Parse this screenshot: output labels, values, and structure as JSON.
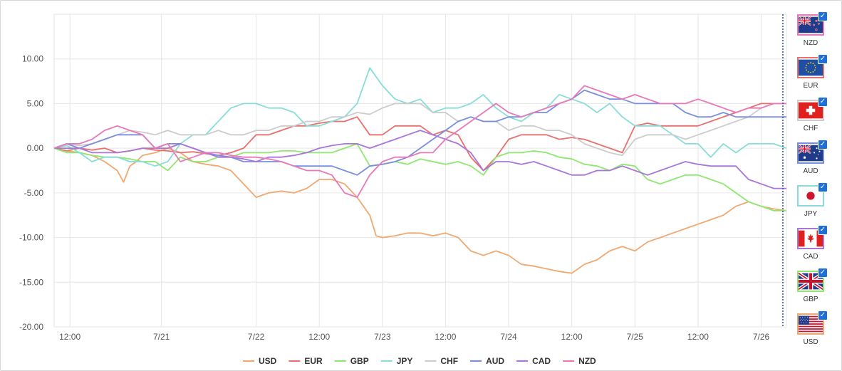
{
  "chart_data": {
    "type": "line",
    "ylim": [
      -20,
      15
    ],
    "yticks": [
      10,
      5,
      0,
      -5,
      -10,
      -15,
      -20
    ],
    "ytick_labels": [
      "10.00",
      "5.00",
      "0.00",
      "-5.00",
      "-10.00",
      "-15.00",
      "-20.00"
    ],
    "xlim": [
      0,
      116
    ],
    "xticks": [
      {
        "x": 2.5,
        "label": "12:00"
      },
      {
        "x": 17,
        "label": "7/21"
      },
      {
        "x": 32,
        "label": "7/22"
      },
      {
        "x": 42,
        "label": "12:00"
      },
      {
        "x": 52,
        "label": "7/23"
      },
      {
        "x": 62,
        "label": "12:00"
      },
      {
        "x": 72,
        "label": "7/24"
      },
      {
        "x": 82,
        "label": "12:00"
      },
      {
        "x": 92,
        "label": "7/25"
      },
      {
        "x": 102,
        "label": "12:00"
      },
      {
        "x": 112,
        "label": "7/26"
      }
    ],
    "grid": true,
    "legend": "bottom",
    "current_marker_x": 116,
    "series": [
      {
        "name": "USD",
        "color": "#f0a870",
        "x": [
          0,
          2,
          4,
          6,
          8,
          10,
          11,
          12,
          13,
          14,
          16,
          18,
          20,
          22,
          24,
          26,
          28,
          30,
          32,
          34,
          36,
          38,
          40,
          42,
          44,
          46,
          48,
          50,
          51,
          52,
          54,
          56,
          58,
          60,
          62,
          64,
          66,
          68,
          70,
          72,
          74,
          76,
          78,
          80,
          82,
          84,
          86,
          88,
          90,
          92,
          94,
          96,
          98,
          100,
          102,
          104,
          106,
          108,
          110,
          112,
          114,
          116
        ],
        "y": [
          0,
          -0.3,
          -0.5,
          -0.8,
          -1.5,
          -2.5,
          -3.8,
          -2,
          -1.5,
          -0.8,
          -0.5,
          0,
          -0.5,
          -1.5,
          -1.8,
          -2,
          -2.5,
          -4,
          -5.5,
          -5,
          -4.8,
          -5,
          -4.5,
          -3.5,
          -3.5,
          -4,
          -5.5,
          -7.5,
          -9.8,
          -10,
          -9.8,
          -9.5,
          -9.5,
          -9.8,
          -9.5,
          -10,
          -11.5,
          -12,
          -11.5,
          -12,
          -13,
          -13.2,
          -13.5,
          -13.8,
          -14,
          -13,
          -12.5,
          -11.5,
          -11,
          -11.5,
          -10.5,
          -10,
          -9.5,
          -9,
          -8.5,
          -8,
          -7.5,
          -6.5,
          -6,
          -6.5,
          -6.8,
          -7
        ]
      },
      {
        "name": "EUR",
        "color": "#e8706c",
        "x": [
          0,
          2,
          4,
          6,
          8,
          10,
          12,
          14,
          16,
          18,
          20,
          22,
          24,
          26,
          28,
          30,
          32,
          34,
          36,
          38,
          40,
          42,
          44,
          46,
          48,
          50,
          52,
          54,
          56,
          58,
          60,
          62,
          64,
          66,
          68,
          70,
          72,
          74,
          76,
          78,
          80,
          82,
          84,
          86,
          88,
          90,
          92,
          94,
          96,
          98,
          100,
          102,
          104,
          106,
          108,
          110,
          112,
          114,
          116
        ],
        "y": [
          0,
          -0.3,
          0,
          -0.2,
          0,
          -0.5,
          -0.3,
          0,
          -0.2,
          -0.3,
          -0.5,
          -0.4,
          -0.6,
          -0.8,
          -0.5,
          0,
          1.5,
          1.5,
          2,
          2.5,
          2.5,
          2.8,
          3,
          3,
          3.5,
          1.5,
          1.5,
          2.5,
          2.5,
          2.5,
          1.5,
          2,
          1.5,
          -1,
          -2.5,
          -1,
          1,
          1.5,
          1.5,
          1.5,
          1,
          1.2,
          1,
          0.5,
          0,
          -0.5,
          2.5,
          2.8,
          2.5,
          2.5,
          2.5,
          2.5,
          3,
          3.5,
          4,
          4.5,
          5,
          5,
          5
        ]
      },
      {
        "name": "GBP",
        "color": "#8ee870",
        "x": [
          0,
          2,
          4,
          6,
          8,
          10,
          12,
          14,
          16,
          18,
          20,
          22,
          24,
          26,
          28,
          30,
          32,
          34,
          36,
          38,
          40,
          42,
          44,
          46,
          48,
          50,
          52,
          54,
          56,
          58,
          60,
          62,
          64,
          66,
          68,
          70,
          72,
          74,
          76,
          78,
          80,
          82,
          84,
          86,
          88,
          90,
          92,
          94,
          96,
          98,
          100,
          102,
          104,
          106,
          108,
          110,
          112,
          114,
          116
        ],
        "y": [
          0,
          -0.5,
          -0.5,
          -0.8,
          -1,
          -1,
          -1.2,
          -1.5,
          -1.5,
          -2.5,
          -1,
          -1.5,
          -1.5,
          -1,
          -1,
          -0.5,
          -0.5,
          -0.5,
          -0.3,
          -0.3,
          -0.5,
          -0.5,
          -0.5,
          0,
          0.5,
          -2,
          -1.8,
          -1.5,
          -1.8,
          -1.2,
          -1.5,
          -1.8,
          -1.5,
          -2,
          -3,
          -1,
          -0.5,
          -0.5,
          -0.3,
          -0.5,
          -1,
          -1.2,
          -1.8,
          -2,
          -2.5,
          -1.8,
          -2,
          -3.5,
          -4,
          -3.5,
          -3,
          -3,
          -3.5,
          -4,
          -5,
          -6,
          -6.5,
          -7,
          -7
        ]
      },
      {
        "name": "JPY",
        "color": "#88ddd8",
        "x": [
          0,
          2,
          4,
          6,
          8,
          10,
          12,
          14,
          16,
          18,
          20,
          22,
          24,
          26,
          28,
          30,
          32,
          34,
          36,
          38,
          40,
          42,
          44,
          46,
          48,
          49,
          50,
          51,
          52,
          54,
          56,
          58,
          60,
          62,
          64,
          66,
          68,
          70,
          72,
          74,
          76,
          78,
          80,
          82,
          84,
          86,
          88,
          90,
          92,
          94,
          96,
          98,
          100,
          102,
          104,
          106,
          108,
          110,
          112,
          114,
          116
        ],
        "y": [
          0,
          0.3,
          -0.5,
          -1.5,
          -1,
          -1,
          -1.5,
          -1.5,
          -2,
          -1.5,
          0.5,
          1.5,
          1.5,
          3,
          4.5,
          5,
          5,
          4.5,
          4.5,
          4,
          2.5,
          2.5,
          3,
          3.5,
          5,
          7,
          9,
          8,
          7,
          5.5,
          5,
          5.5,
          4,
          4.5,
          4.5,
          5,
          6,
          4.5,
          3.5,
          3,
          4,
          4.5,
          6,
          5.5,
          5,
          4,
          5,
          3.5,
          2.5,
          2.5,
          2.5,
          1.5,
          0.5,
          0.5,
          -1,
          0.5,
          -0.5,
          0.5,
          0.5,
          0.5,
          0
        ]
      },
      {
        "name": "CHF",
        "color": "#cccccc",
        "x": [
          0,
          2,
          4,
          6,
          8,
          10,
          12,
          14,
          16,
          18,
          20,
          22,
          24,
          26,
          28,
          30,
          32,
          34,
          36,
          38,
          40,
          42,
          44,
          46,
          48,
          50,
          52,
          54,
          56,
          58,
          60,
          62,
          64,
          66,
          68,
          70,
          72,
          74,
          76,
          78,
          80,
          82,
          84,
          86,
          88,
          90,
          92,
          94,
          96,
          98,
          100,
          102,
          104,
          106,
          108,
          110,
          112,
          114,
          116
        ],
        "y": [
          0,
          0.5,
          0.3,
          0.5,
          1,
          1.5,
          2,
          1.8,
          1.5,
          2,
          1.5,
          1.5,
          1.5,
          2,
          1.5,
          1.5,
          2,
          2,
          2.5,
          2.5,
          3,
          3,
          3.5,
          3.5,
          4,
          3.8,
          4.5,
          5,
          5,
          5,
          4,
          4,
          3,
          3.5,
          3,
          3,
          2,
          2.5,
          2.5,
          2,
          2,
          1.5,
          0.5,
          0,
          -0.5,
          -0.8,
          1,
          1.5,
          1.5,
          1.5,
          1,
          1.5,
          2,
          2.5,
          3,
          3.5,
          4.5,
          5,
          5
        ]
      },
      {
        "name": "AUD",
        "color": "#7a8ee0",
        "x": [
          0,
          2,
          4,
          6,
          8,
          10,
          12,
          14,
          16,
          18,
          20,
          22,
          24,
          26,
          28,
          30,
          32,
          34,
          36,
          38,
          40,
          42,
          44,
          46,
          48,
          50,
          52,
          54,
          56,
          58,
          60,
          62,
          64,
          66,
          68,
          70,
          72,
          74,
          76,
          78,
          80,
          82,
          84,
          86,
          88,
          90,
          92,
          94,
          96,
          98,
          100,
          102,
          104,
          106,
          108,
          110,
          112,
          114,
          116
        ],
        "y": [
          0,
          0.5,
          0,
          0.5,
          1,
          1.5,
          1.5,
          1.5,
          0,
          0.5,
          0.5,
          0,
          -0.5,
          -0.8,
          -1,
          -1.5,
          -1.5,
          -1.5,
          -1.5,
          -2,
          -2,
          -2,
          -2,
          -2.5,
          -3,
          -2,
          -1.8,
          -1.5,
          -1,
          0,
          1,
          2,
          3,
          3.5,
          3,
          3,
          3.5,
          3.5,
          4,
          4,
          5,
          5.5,
          6.5,
          6,
          5.5,
          5.5,
          5,
          5,
          5,
          5,
          4,
          3.5,
          3.5,
          4,
          3.5,
          3.5,
          3.5,
          3.5,
          3.5
        ]
      },
      {
        "name": "CAD",
        "color": "#a876d8",
        "x": [
          0,
          2,
          4,
          6,
          8,
          10,
          12,
          14,
          16,
          18,
          20,
          22,
          24,
          26,
          28,
          30,
          32,
          34,
          36,
          38,
          40,
          42,
          44,
          46,
          48,
          50,
          52,
          54,
          56,
          58,
          60,
          62,
          64,
          66,
          68,
          70,
          72,
          74,
          76,
          78,
          80,
          82,
          84,
          86,
          88,
          90,
          92,
          94,
          96,
          98,
          100,
          102,
          104,
          106,
          108,
          110,
          112,
          114,
          116
        ],
        "y": [
          0,
          0,
          0,
          -0.5,
          -0.5,
          -0.5,
          -0.3,
          0,
          0,
          0,
          0.5,
          0,
          -0.5,
          -1,
          -1,
          -1.2,
          -1.5,
          -1,
          -1,
          -0.8,
          -0.5,
          0,
          0.3,
          0.5,
          0.5,
          0,
          0.5,
          1,
          1.5,
          2,
          1.5,
          1,
          0.5,
          -0.5,
          -2.5,
          -1.5,
          -1.5,
          -1.8,
          -1.5,
          -2,
          -2.5,
          -3,
          -3,
          -2.5,
          -2.5,
          -2,
          -2.5,
          -3,
          -2.5,
          -2,
          -1.5,
          -1.8,
          -2,
          -2,
          -2,
          -3.5,
          -4,
          -4.5,
          -4.5
        ]
      },
      {
        "name": "NZD",
        "color": "#e878b8",
        "x": [
          0,
          2,
          4,
          6,
          8,
          10,
          12,
          14,
          16,
          18,
          20,
          22,
          24,
          26,
          28,
          30,
          32,
          34,
          36,
          38,
          40,
          42,
          44,
          46,
          48,
          50,
          52,
          54,
          56,
          58,
          60,
          62,
          64,
          66,
          68,
          70,
          72,
          74,
          76,
          78,
          80,
          82,
          84,
          86,
          88,
          90,
          92,
          94,
          96,
          98,
          100,
          102,
          104,
          106,
          108,
          110,
          112,
          114,
          116
        ],
        "y": [
          0,
          0.5,
          0.5,
          1,
          2,
          2.5,
          2,
          1.5,
          0,
          0.5,
          -1.5,
          -1,
          -0.5,
          -0.5,
          -0.8,
          -1,
          -1,
          -1.2,
          -1.5,
          -2,
          -2.5,
          -2.5,
          -3,
          -5,
          -5.5,
          -3,
          -1.5,
          -1,
          -1,
          -0.5,
          -0.5,
          1,
          2,
          3,
          4,
          5,
          4,
          3.5,
          4,
          4.5,
          5,
          5.5,
          7,
          6.5,
          6,
          5.5,
          6,
          5.5,
          5,
          5,
          5,
          5.5,
          5,
          4.5,
          4,
          4.5,
          4.5,
          5,
          5
        ]
      }
    ]
  },
  "sidebar": {
    "items": [
      {
        "code": "NZD",
        "border": "#e878b8",
        "flag": "nz-flag"
      },
      {
        "code": "EUR",
        "border": "#e8706c",
        "flag": "eu-flag"
      },
      {
        "code": "CHF",
        "border": "#cccccc",
        "flag": "ch-flag"
      },
      {
        "code": "AUD",
        "border": "#7a8ee0",
        "flag": "au-flag"
      },
      {
        "code": "JPY",
        "border": "#88ddd8",
        "flag": "jp-flag"
      },
      {
        "code": "CAD",
        "border": "#a876d8",
        "flag": "ca-flag"
      },
      {
        "code": "GBP",
        "border": "#8ee870",
        "flag": "gb-flag"
      },
      {
        "code": "USD",
        "border": "#f0a870",
        "flag": "us-flag"
      }
    ]
  }
}
